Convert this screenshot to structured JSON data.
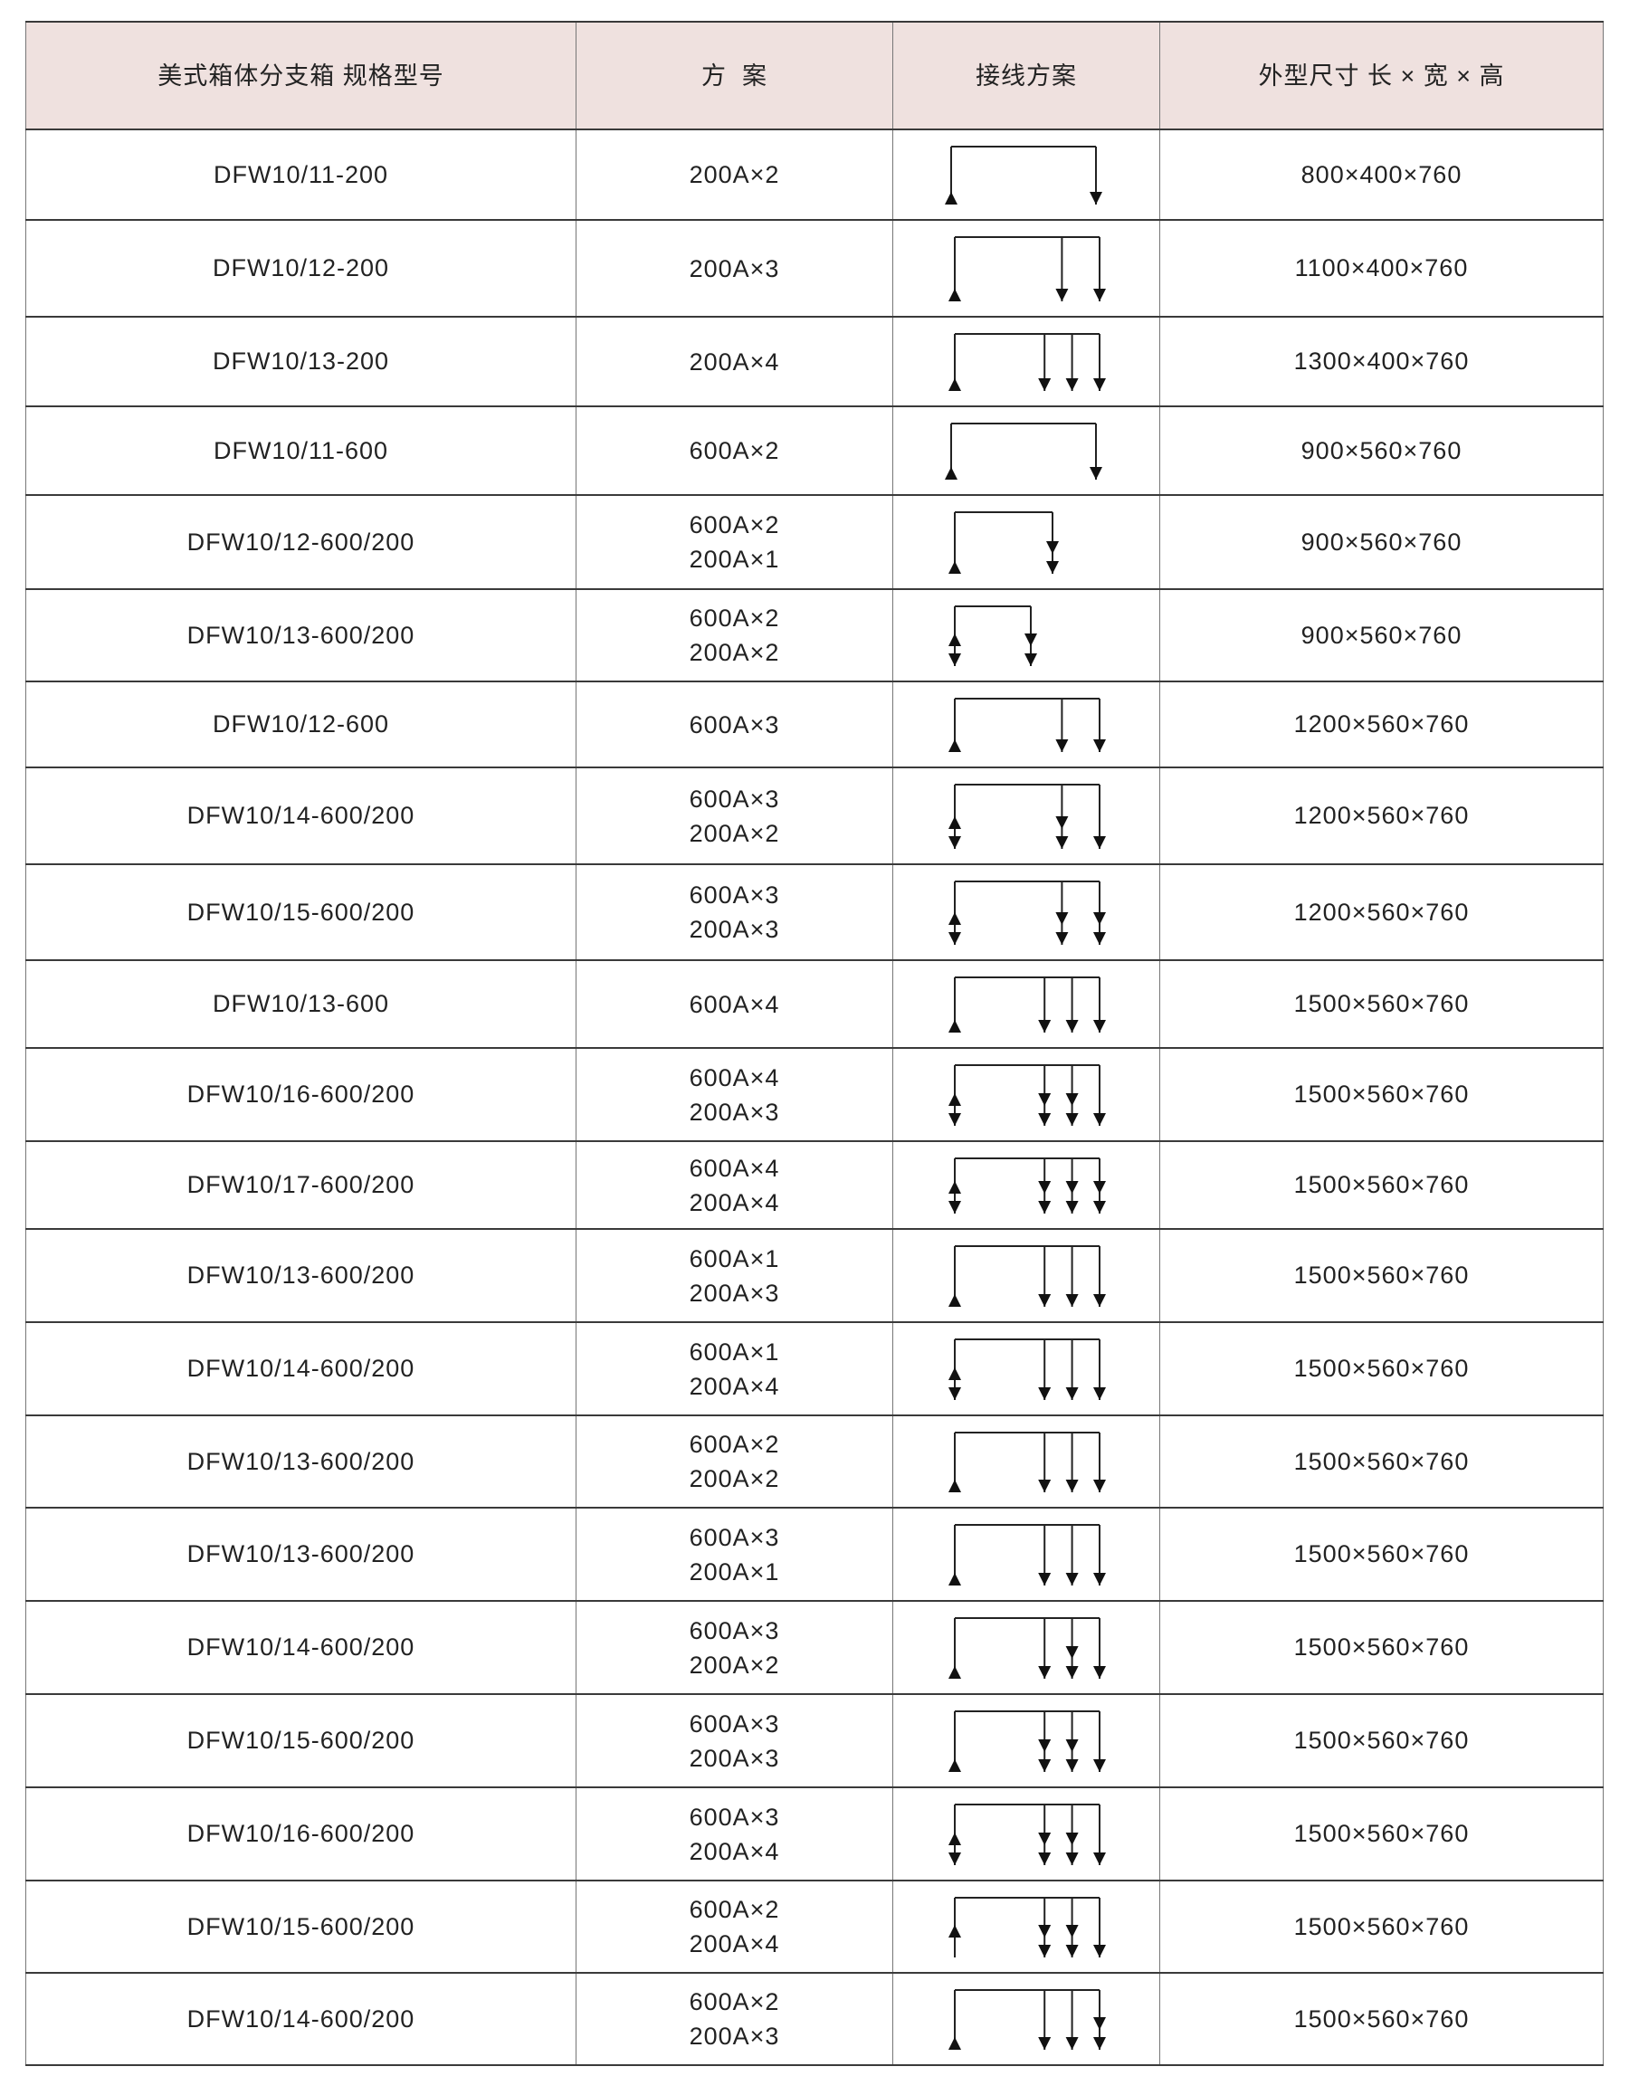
{
  "header": {
    "model": [
      "美式箱体分支箱",
      "规格型号"
    ],
    "scheme": "方  案",
    "wiring": "接线方案",
    "size": [
      "外型尺寸",
      "长 × 宽 × 高"
    ]
  },
  "rows": [
    {
      "model": "DFW10/11-200",
      "scheme": [
        "200A×2"
      ],
      "size": "800×400×760",
      "wiring": {
        "source": "up",
        "outputs": [
          "single"
        ]
      }
    },
    {
      "model": "DFW10/12-200",
      "scheme": [
        "200A×3"
      ],
      "size": "1100×400×760",
      "wiring": {
        "source": "up",
        "outputs": [
          "single",
          "single"
        ]
      }
    },
    {
      "model": "DFW10/13-200",
      "scheme": [
        "200A×4"
      ],
      "size": "1300×400×760",
      "wiring": {
        "source": "up",
        "outputs": [
          "single",
          "single",
          "single"
        ]
      }
    },
    {
      "model": "DFW10/11-600",
      "scheme": [
        "600A×2"
      ],
      "size": "900×560×760",
      "wiring": {
        "source": "up",
        "outputs": [
          "single"
        ]
      }
    },
    {
      "model": "DFW10/12-600/200",
      "scheme": [
        "600A×2",
        "200A×1"
      ],
      "size": "900×560×760",
      "wiring": {
        "source": "up",
        "outputs": [
          "double"
        ]
      }
    },
    {
      "model": "DFW10/13-600/200",
      "scheme": [
        "600A×2",
        "200A×2"
      ],
      "size": "900×560×760",
      "wiring": {
        "source": "up-down",
        "outputs": [
          "double"
        ]
      }
    },
    {
      "model": "DFW10/12-600",
      "scheme": [
        "600A×3"
      ],
      "size": "1200×560×760",
      "wiring": {
        "source": "up",
        "outputs": [
          "single",
          "single"
        ]
      }
    },
    {
      "model": "DFW10/14-600/200",
      "scheme": [
        "600A×3",
        "200A×2"
      ],
      "size": "1200×560×760",
      "wiring": {
        "source": "up-down",
        "outputs": [
          "double",
          "single"
        ]
      }
    },
    {
      "model": "DFW10/15-600/200",
      "scheme": [
        "600A×3",
        "200A×3"
      ],
      "size": "1200×560×760",
      "wiring": {
        "source": "up-down",
        "outputs": [
          "double",
          "double"
        ]
      }
    },
    {
      "model": "DFW10/13-600",
      "scheme": [
        "600A×4"
      ],
      "size": "1500×560×760",
      "wiring": {
        "source": "up",
        "outputs": [
          "single",
          "single",
          "single"
        ]
      }
    },
    {
      "model": "DFW10/16-600/200",
      "scheme": [
        "600A×4",
        "200A×3"
      ],
      "size": "1500×560×760",
      "wiring": {
        "source": "up-down",
        "outputs": [
          "double",
          "double",
          "single"
        ]
      }
    },
    {
      "model": "DFW10/17-600/200",
      "scheme": [
        "600A×4",
        "200A×4"
      ],
      "size": "1500×560×760",
      "wiring": {
        "source": "up-down",
        "outputs": [
          "double",
          "double",
          "double"
        ]
      }
    },
    {
      "model": "DFW10/13-600/200",
      "scheme": [
        "600A×1",
        "200A×3"
      ],
      "size": "1500×560×760",
      "wiring": {
        "source": "up",
        "outputs": [
          "single",
          "single",
          "single"
        ]
      }
    },
    {
      "model": "DFW10/14-600/200",
      "scheme": [
        "600A×1",
        "200A×4"
      ],
      "size": "1500×560×760",
      "wiring": {
        "source": "up-down",
        "outputs": [
          "single",
          "single",
          "single"
        ]
      }
    },
    {
      "model": "DFW10/13-600/200",
      "scheme": [
        "600A×2",
        "200A×2"
      ],
      "size": "1500×560×760",
      "wiring": {
        "source": "up",
        "outputs": [
          "single",
          "single",
          "single"
        ]
      }
    },
    {
      "model": "DFW10/13-600/200",
      "scheme": [
        "600A×3",
        "200A×1"
      ],
      "size": "1500×560×760",
      "wiring": {
        "source": "up",
        "outputs": [
          "single",
          "single",
          "single"
        ]
      }
    },
    {
      "model": "DFW10/14-600/200",
      "scheme": [
        "600A×3",
        "200A×2"
      ],
      "size": "1500×560×760",
      "wiring": {
        "source": "up",
        "outputs": [
          "single",
          "double",
          "single"
        ]
      }
    },
    {
      "model": "DFW10/15-600/200",
      "scheme": [
        "600A×3",
        "200A×3"
      ],
      "size": "1500×560×760",
      "wiring": {
        "source": "up",
        "outputs": [
          "double",
          "double",
          "single"
        ]
      }
    },
    {
      "model": "DFW10/16-600/200",
      "scheme": [
        "600A×3",
        "200A×4"
      ],
      "size": "1500×560×760",
      "wiring": {
        "source": "up-down",
        "outputs": [
          "double",
          "double",
          "single"
        ]
      }
    },
    {
      "model": "DFW10/15-600/200",
      "scheme": [
        "600A×2",
        "200A×4"
      ],
      "size": "1500×560×760",
      "wiring": {
        "source": "up-line",
        "outputs": [
          "double",
          "double",
          "single"
        ]
      }
    },
    {
      "model": "DFW10/14-600/200",
      "scheme": [
        "600A×2",
        "200A×3"
      ],
      "size": "1500×560×760",
      "wiring": {
        "source": "up",
        "outputs": [
          "single",
          "single",
          "double"
        ]
      }
    }
  ]
}
